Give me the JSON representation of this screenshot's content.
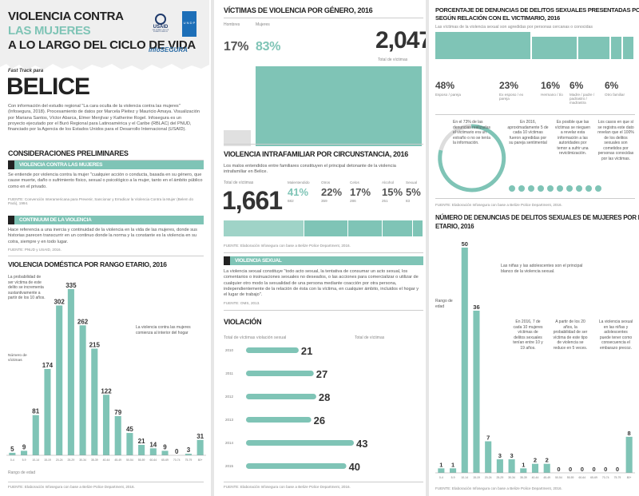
{
  "header": {
    "title_l1": "VIOLENCIA CONTRA",
    "title_l2": "LAS MUJERES",
    "title_l3": "A LO LARGO DEL CICLO DE VIDA",
    "usaid": "USAID",
    "usaid_sub": "DEL PUEBLO DE LOS ESTADOS UNIDOS",
    "undp": "U N D P",
    "infosegura": "infoSEGURA",
    "fast_track": "Fast Track para",
    "country": "BELICE",
    "intro": "Con información del estudio regional \"La cara oculta de la violencia contra las mujeres\" (Infosegura, 2018). Procesamiento de datos por Marcela Pleitez y Mauricio Amaya. Visualización por Mariana Santos, Víctor Abarca, Elmer Menjívar y Katherine Rogel. Infosegura es un proyecto ejecutado por el Buró Regional para Latinoamérica y el Caribe (RBLAC) del PNUD, financiado por la Agencia de los Estados Unidos para el Desarrollo Internacional (USAID)."
  },
  "prelim": {
    "title": "CONSIDERACIONES PRELIMINARES",
    "box1_title": "VIOLENCIA CONTRA LAS MUJERES",
    "box1_text": "Se entiende por violencia contra la mujer \"cualquier acción o conducta, basada en su género, que cause muerte, daño o sufrimiento físico, sexual o psicológico a la mujer, tanto en el ámbito público como en el privado.",
    "box1_source": "FUENTE: Convención Interamericana para Prevenir, Sancionar y Erradicar la Violencia Contra la Mujer (Belem do Pará), 1994.",
    "box2_title": "CONTINUUM DE LA VIOLENCIA",
    "box2_text": "Hace referencia a una inercia y continuidad de la violencia en la vida de las mujeres, donde sus historias parecen transcurrir en un continuo donde la norma y la constante es la violencia en su cotra, siempre y en todo lugar.",
    "box2_source": "FUENTE: PNUD y USAID, 2016."
  },
  "domestic": {
    "title": "VIOLENCIA DOMÉSTICA POR RANGO ETARIO, 2016",
    "note1": "La probabilidad de ser víctima de este delito se incrementa sustantivamente a partir de los 10 años.",
    "note2": "La violencia contra las mujeres comienza al interior del hogar",
    "ylabel": "Número de víctimas",
    "xlabel": "Rango de edad",
    "source": "FUENTE: Elaboración Infosegura con base a Belize Police Department, 2016."
  },
  "gender": {
    "title": "VÍCTIMAS DE VIOLENCIA POR GÉNERO, 2016",
    "men_label": "Hombres",
    "men_pct": "17%",
    "women_label": "Mujeres",
    "women_pct": "83%",
    "total": "2,047",
    "total_label": "Total de víctimas"
  },
  "intrafam": {
    "title": "VIOLENCIA INTRAFAMILIAR POR CIRCUNSTANCIA, 2016",
    "desc": "Los malos entendidos entre familiares constituyen el principal detonante de la violencia intrafamiliar en Belice.",
    "total_label": "Total de víctimas",
    "total": "1,661",
    "items": [
      {
        "label": "Malentendido",
        "pct": "41%",
        "n": "682"
      },
      {
        "label": "Otros",
        "pct": "22%",
        "n": "359"
      },
      {
        "label": "Celos",
        "pct": "17%",
        "n": "286"
      },
      {
        "label": "Alcohol",
        "pct": "15%",
        "n": "251"
      },
      {
        "label": "Sexual",
        "pct": "5%",
        "n": "83"
      }
    ],
    "source": "FUENTE: Elaboración Infosegura con base a Belize Police Department, 2016."
  },
  "sexual_box": {
    "title": "VIOLENCIA SEXUAL",
    "text": "La violencia sexual constituye \"todo acto sexual, la tentativa de consumar un acto sexual, los comentarios o insinuaciones sexuales no deseados, o las acciones para comercializar o utilizar de cualquier otro modo la sexualidad de una persona mediante coacción por otra persona, independientemente de la relación de ésta con la víctima, en cualquier ámbito, incluidos el hogar y el lugar de trabajo\".",
    "source": "FUENTE: OMS, 2013."
  },
  "rape": {
    "title": "VIOLACIÓN",
    "sub": "Total de víctimas violación sexual",
    "total_label": "Total de víctimas",
    "source": "FUENTE: Elaboración Infosegura con base a Belize Police Department, 2016."
  },
  "relation": {
    "title_l1": "PORCENTAJE DE DENUNCIAS DE DELITOS SEXUALES PRESENTADAS POR MUJERES",
    "title_l2": "SEGÚN RELACIÓN CON EL VICTIMARIO, 2016",
    "sub": "Las víctimas de la violencia sexual son agredidas por personas cercanas o conocidas",
    "items": [
      {
        "pct": "48%",
        "label": "Esposo / pareja"
      },
      {
        "pct": "23%",
        "label": "Ex esposo / ex pareja"
      },
      {
        "pct": "16%",
        "label": "Hermano / tío"
      },
      {
        "pct": "6%",
        "label": "Madre / padre / padrastro / madrastra"
      },
      {
        "pct": "6%",
        "label": "Otro familiar"
      }
    ],
    "stat1": "En el 73% de las denuncias realizadas el victimario era un extraño o no se tenía la información.",
    "stat2": "En 2016, aproximadamente 5 de cada 10 víctimas fueron agredidas por su pareja sentimental",
    "stat3": "Es posible que las víctimas se nieguen a revelar esta información a las autoridades por temor a sufrir una revictimización.",
    "stat4": "Los casos en que sí se registra este dato revelan que el 100% de los delitos sexuales son cometidos por personas conocidas por las víctimas.",
    "source": "FUENTE: Elaboración Infosegura con base a Belize Police Department, 2016."
  },
  "sexual_age": {
    "title_l1": "NÚMERO DE DENUNCIAS DE DELITOS SEXUALES DE MUJERES POR RANGO",
    "title_l2": "ETARIO, 2016",
    "ylabel": "Rango de edad",
    "note1": "Las niñas y las adolescentes son el principal blanco de la violencia sexual.",
    "note2": "En 2016, 7 de cada 10 mujeres víctimas de delitos sexuales tenían entre 10 y 19 años.",
    "note3": "A partir de los 20 años, la probabilidad de ser víctima de este tipo de violencia se reduce en 5 veces.",
    "note4": "La violencia sexual en las niñas y adolescentes puede tener como consecuencia el embarazo precoz.",
    "source": "FUENTE: Elaboración Infosegura con base a Belize Police Department, 2016."
  },
  "chart_data": [
    {
      "type": "bar",
      "title": "VIOLENCIA DOMÉSTICA POR RANGO ETARIO, 2016",
      "xlabel": "Rango de edad",
      "ylabel": "Número de víctimas",
      "categories": [
        "0-4",
        "5-9",
        "10-14",
        "15-19",
        "20-24",
        "25-29",
        "30-34",
        "35-39",
        "40-44",
        "45-49",
        "50-54",
        "55-59",
        "60-64",
        "65-69",
        "70-74",
        "75-79",
        "80+"
      ],
      "values": [
        5,
        9,
        81,
        174,
        302,
        335,
        262,
        215,
        122,
        79,
        45,
        21,
        14,
        9,
        0,
        3,
        31
      ]
    },
    {
      "type": "bar",
      "title": "VIOLACIÓN",
      "xlabel": "",
      "ylabel": "Total de víctimas violación sexual",
      "categories": [
        "2010",
        "2011",
        "2012",
        "2013",
        "2014",
        "2015"
      ],
      "values": [
        21,
        27,
        28,
        26,
        43,
        40
      ]
    },
    {
      "type": "bar",
      "title": "NÚMERO DE DENUNCIAS DE DELITOS SEXUALES DE MUJERES POR RANGO ETARIO, 2016",
      "ylabel": "Rango de edad",
      "categories": [
        "0-4",
        "5-9",
        "10-14",
        "15-19",
        "20-24",
        "25-29",
        "30-34",
        "35-39",
        "40-44",
        "45-49",
        "50-54",
        "55-59",
        "60-64",
        "65-69",
        "70-74",
        "75-79",
        "80+"
      ],
      "values": [
        1,
        1,
        50,
        36,
        7,
        3,
        3,
        1,
        2,
        2,
        0,
        0,
        0,
        0,
        0,
        0,
        8
      ]
    }
  ]
}
